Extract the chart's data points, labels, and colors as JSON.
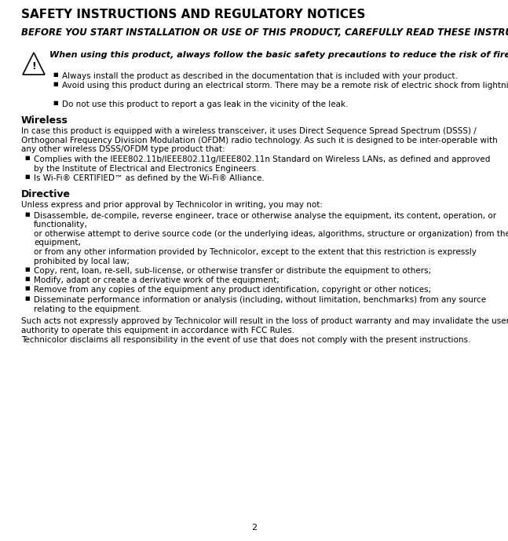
{
  "title": "SAFETY INSTRUCTIONS AND REGULATORY NOTICES",
  "subtitle": "BEFORE YOU START INSTALLATION OR USE OF THIS PRODUCT, CAREFULLY READ THESE INSTRUCTIONS",
  "warning_text": "When using this product, always follow the basic safety precautions to reduce the risk of fire, electric shock and injury to persons, including the following:",
  "warning_bullets": [
    "Always install the product as described in the documentation that is included with your product.",
    "Avoid using this product during an electrical storm. There may be a remote risk of electric shock from lightning.",
    "Do not use this product to report a gas leak in the vicinity of the leak."
  ],
  "wireless_title": "Wireless",
  "wireless_intro": "In case this product is equipped with a wireless transceiver, it uses Direct Sequence Spread Spectrum (DSSS) /\nOrthogonal Frequency Division Modulation (OFDM) radio technology. As such it is designed to be inter-operable with\nany other wireless DSSS/OFDM type product that:",
  "wireless_bullets": [
    "Complies with the IEEE802.11b/IEEE802.11g/IEEE802.11n Standard on Wireless LANs, as defined and approved\nby the Institute of Electrical and Electronics Engineers.",
    "Is Wi-Fi® CERTIFIED™ as defined by the Wi-Fi® Alliance."
  ],
  "directive_title": "Directive",
  "directive_intro": "Unless express and prior approval by Technicolor in writing, you may not:",
  "directive_bullets": [
    "Disassemble, de-compile, reverse engineer, trace or otherwise analyse the equipment, its content, operation, or\nfunctionality,\nor otherwise attempt to derive source code (or the underlying ideas, algorithms, structure or organization) from the\nequipment,\nor from any other information provided by Technicolor, except to the extent that this restriction is expressly\nprohibited by local law;",
    "Copy, rent, loan, re-sell, sub-license, or otherwise transfer or distribute the equipment to others;",
    "Modify, adapt or create a derivative work of the equipment;",
    "Remove from any copies of the equipment any product identification, copyright or other notices;",
    "Disseminate performance information or analysis (including, without limitation, benchmarks) from any source\nrelating to the equipment."
  ],
  "footer1": "Such acts not expressly approved by Technicolor will result in the loss of product warranty and may invalidate the user’s\nauthority to operate this equipment in accordance with FCC Rules.",
  "footer2": "Technicolor disclaims all responsibility in the event of use that does not comply with the present instructions.",
  "page_number": "2",
  "bg_color": "#ffffff",
  "text_color": "#000000",
  "title_fs": 11,
  "subtitle_fs": 8.5,
  "warn_fs": 8.0,
  "body_fs": 7.5,
  "section_fs": 9.0
}
